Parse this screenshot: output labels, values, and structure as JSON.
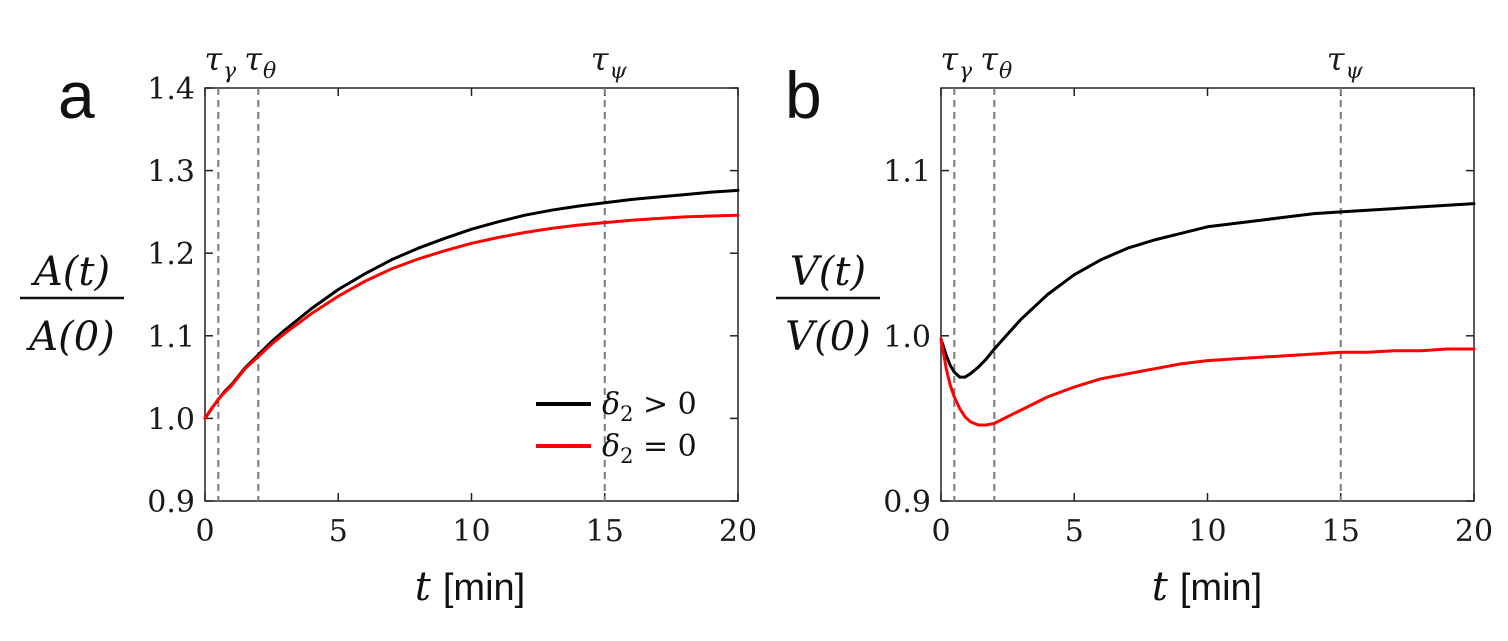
{
  "chart_data": [
    {
      "type": "line",
      "panel_label": "a",
      "xlabel": "t [min]",
      "xlabel_var": "t",
      "xlabel_unit": "[min]",
      "ylabel_numerator": "A(t)",
      "ylabel_denominator": "A(0)",
      "xlim": [
        0,
        20
      ],
      "ylim": [
        0.9,
        1.4
      ],
      "xticks": [
        0,
        5,
        10,
        15,
        20
      ],
      "yticks": [
        0.9,
        1.0,
        1.1,
        1.2,
        1.3,
        1.4
      ],
      "x": [
        0,
        0.25,
        0.5,
        0.75,
        1,
        1.5,
        2,
        2.5,
        3,
        4,
        5,
        6,
        7,
        8,
        9,
        10,
        11,
        12,
        13,
        14,
        15,
        16,
        17,
        18,
        19,
        20
      ],
      "series": [
        {
          "name": "δ2 > 0",
          "color": "#000000",
          "values": [
            1.0,
            1.012,
            1.023,
            1.033,
            1.041,
            1.061,
            1.077,
            1.093,
            1.107,
            1.133,
            1.156,
            1.175,
            1.192,
            1.206,
            1.218,
            1.229,
            1.238,
            1.246,
            1.252,
            1.257,
            1.261,
            1.265,
            1.268,
            1.271,
            1.274,
            1.276
          ]
        },
        {
          "name": "δ2 = 0",
          "color": "#ff0000",
          "values": [
            1.0,
            1.012,
            1.023,
            1.032,
            1.04,
            1.06,
            1.075,
            1.09,
            1.103,
            1.127,
            1.148,
            1.166,
            1.181,
            1.193,
            1.203,
            1.212,
            1.219,
            1.225,
            1.23,
            1.234,
            1.237,
            1.24,
            1.242,
            1.244,
            1.245,
            1.246
          ]
        }
      ],
      "vlines": [
        {
          "label": "τ",
          "sub": "γ",
          "x": 0.5
        },
        {
          "label": "τ",
          "sub": "θ",
          "x": 2
        },
        {
          "label": "τ",
          "sub": "ψ",
          "x": 15
        }
      ],
      "legend": {
        "position": "lower-right",
        "entries": [
          {
            "var": "δ",
            "sub": "2",
            "rel": " > 0",
            "color": "#000000"
          },
          {
            "var": "δ",
            "sub": "2",
            "rel": " = 0",
            "color": "#ff0000"
          }
        ]
      }
    },
    {
      "type": "line",
      "panel_label": "b",
      "xlabel": "t [min]",
      "xlabel_var": "t",
      "xlabel_unit": "[min]",
      "ylabel_numerator": "V(t)",
      "ylabel_denominator": "V(0)",
      "xlim": [
        0,
        20
      ],
      "ylim": [
        0.9,
        1.15
      ],
      "xticks": [
        0,
        5,
        10,
        15,
        20
      ],
      "yticks": [
        0.9,
        1.0,
        1.1
      ],
      "x": [
        0,
        0.1,
        0.2,
        0.35,
        0.5,
        0.7,
        0.9,
        1.1,
        1.4,
        1.7,
        2,
        2.5,
        3,
        4,
        5,
        6,
        7,
        8,
        9,
        10,
        11,
        12,
        13,
        14,
        15,
        16,
        17,
        18,
        19,
        20
      ],
      "series": [
        {
          "name": "δ2 > 0",
          "color": "#000000",
          "values": [
            0.998,
            0.993,
            0.988,
            0.982,
            0.978,
            0.975,
            0.975,
            0.977,
            0.981,
            0.986,
            0.992,
            1.001,
            1.01,
            1.025,
            1.037,
            1.046,
            1.053,
            1.058,
            1.062,
            1.066,
            1.068,
            1.07,
            1.072,
            1.074,
            1.075,
            1.076,
            1.077,
            1.078,
            1.079,
            1.08
          ]
        },
        {
          "name": "δ2 = 0",
          "color": "#ff0000",
          "values": [
            0.998,
            0.989,
            0.98,
            0.97,
            0.963,
            0.956,
            0.951,
            0.948,
            0.946,
            0.946,
            0.947,
            0.951,
            0.955,
            0.963,
            0.969,
            0.974,
            0.977,
            0.98,
            0.983,
            0.985,
            0.986,
            0.987,
            0.988,
            0.989,
            0.99,
            0.99,
            0.991,
            0.991,
            0.992,
            0.992
          ]
        }
      ],
      "vlines": [
        {
          "label": "τ",
          "sub": "γ",
          "x": 0.5
        },
        {
          "label": "τ",
          "sub": "θ",
          "x": 2
        },
        {
          "label": "τ",
          "sub": "ψ",
          "x": 15
        }
      ]
    }
  ]
}
